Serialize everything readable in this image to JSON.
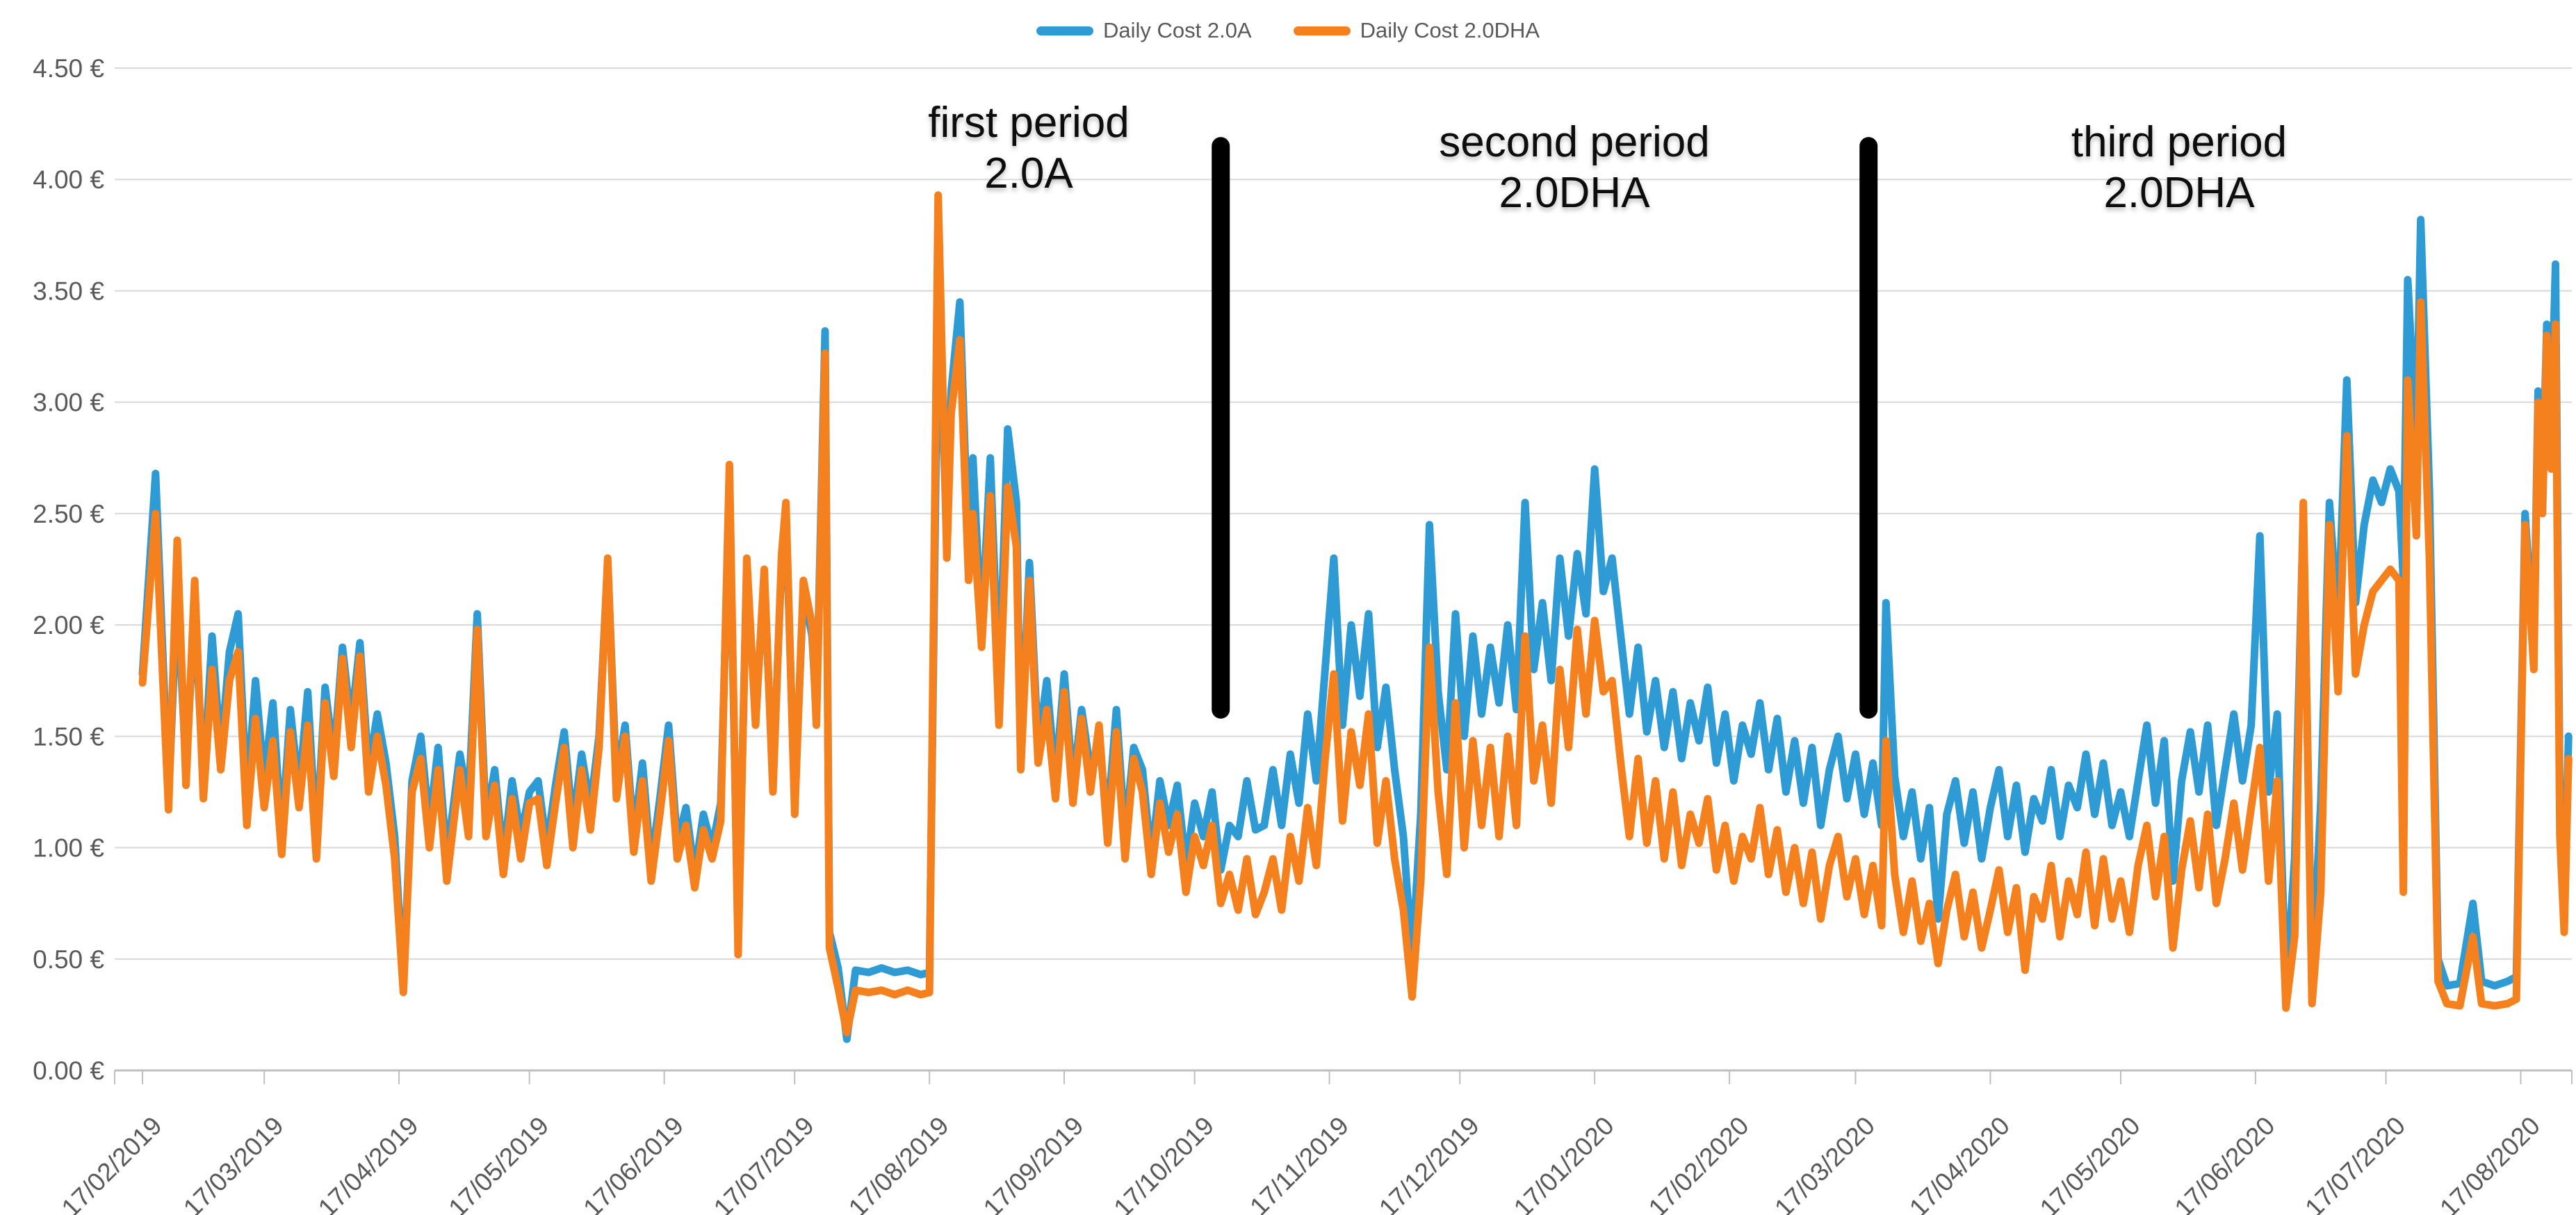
{
  "legend": {
    "items": [
      {
        "label": "Daily Cost 2.0A",
        "color": "#2E9BD5"
      },
      {
        "label": "Daily Cost 2.0DHA",
        "color": "#F5801E"
      }
    ]
  },
  "annotations": {
    "first": {
      "line1": "first period",
      "line2": "2.0A"
    },
    "second": {
      "line1": "second period",
      "line2": "2.0DHA"
    },
    "third": {
      "line1": "third period",
      "line2": "2.0DHA"
    }
  },
  "chart_data": {
    "type": "line",
    "title": "",
    "xlabel": "",
    "ylabel": "",
    "x_unit": "daily values, days since 17/02/2019",
    "ylim": [
      0,
      4.5
    ],
    "grid": "horizontal",
    "legend_position": "top-center",
    "y_ticks": [
      0,
      0.5,
      1.0,
      1.5,
      2.0,
      2.5,
      3.0,
      3.5,
      4.0,
      4.5
    ],
    "y_tick_labels": [
      "0.00 €",
      "0.50 €",
      "1.00 €",
      "1.50 €",
      "2.00 €",
      "2.50 €",
      "3.00 €",
      "3.50 €",
      "4.00 €",
      "4.50 €"
    ],
    "x_tick_days": [
      0,
      28,
      59,
      89,
      120,
      150,
      181,
      212,
      242,
      273,
      303,
      334,
      365,
      394,
      425,
      455,
      486,
      516,
      547
    ],
    "x_tick_labels": [
      "17/02/2019",
      "17/03/2019",
      "17/04/2019",
      "17/05/2019",
      "17/06/2019",
      "17/07/2019",
      "17/08/2019",
      "17/09/2019",
      "17/10/2019",
      "17/11/2019",
      "17/12/2019",
      "17/01/2020",
      "17/02/2020",
      "17/03/2020",
      "17/04/2020",
      "17/05/2020",
      "17/06/2020",
      "17/07/2020",
      "17/08/2020"
    ],
    "series": [
      {
        "name": "Daily Cost 2.0A",
        "color": "#2E9BD5",
        "point_index": 1
      },
      {
        "name": "Daily Cost 2.0DHA",
        "color": "#F5801E",
        "point_index": 2
      }
    ],
    "points": [
      [
        0,
        1.78,
        1.74
      ],
      [
        3,
        2.68,
        2.5
      ],
      [
        6,
        1.22,
        1.17
      ],
      [
        8,
        2.15,
        2.38
      ],
      [
        10,
        1.35,
        1.28
      ],
      [
        12,
        2.08,
        2.2
      ],
      [
        14,
        1.28,
        1.22
      ],
      [
        16,
        1.95,
        1.8
      ],
      [
        18,
        1.42,
        1.35
      ],
      [
        20,
        1.88,
        1.75
      ],
      [
        22,
        2.05,
        1.88
      ],
      [
        24,
        1.22,
        1.1
      ],
      [
        26,
        1.75,
        1.58
      ],
      [
        28,
        1.3,
        1.18
      ],
      [
        30,
        1.65,
        1.48
      ],
      [
        32,
        1.05,
        0.97
      ],
      [
        34,
        1.62,
        1.52
      ],
      [
        36,
        1.25,
        1.18
      ],
      [
        38,
        1.7,
        1.55
      ],
      [
        40,
        1.02,
        0.95
      ],
      [
        42,
        1.72,
        1.65
      ],
      [
        44,
        1.4,
        1.32
      ],
      [
        46,
        1.9,
        1.85
      ],
      [
        48,
        1.55,
        1.45
      ],
      [
        50,
        1.92,
        1.86
      ],
      [
        52,
        1.35,
        1.25
      ],
      [
        54,
        1.6,
        1.5
      ],
      [
        56,
        1.38,
        1.28
      ],
      [
        58,
        1.05,
        0.95
      ],
      [
        60,
        0.38,
        0.35
      ],
      [
        62,
        1.3,
        1.25
      ],
      [
        64,
        1.5,
        1.4
      ],
      [
        66,
        1.1,
        1.0
      ],
      [
        68,
        1.45,
        1.35
      ],
      [
        70,
        0.95,
        0.85
      ],
      [
        73,
        1.42,
        1.35
      ],
      [
        75,
        1.2,
        1.05
      ],
      [
        77,
        2.05,
        1.98
      ],
      [
        79,
        1.12,
        1.05
      ],
      [
        81,
        1.35,
        1.28
      ],
      [
        83,
        0.95,
        0.88
      ],
      [
        85,
        1.3,
        1.22
      ],
      [
        87,
        1.05,
        0.95
      ],
      [
        89,
        1.25,
        1.2
      ],
      [
        91,
        1.3,
        1.22
      ],
      [
        93,
        1.0,
        0.92
      ],
      [
        95,
        1.28,
        1.2
      ],
      [
        97,
        1.52,
        1.45
      ],
      [
        99,
        1.1,
        1.0
      ],
      [
        101,
        1.42,
        1.35
      ],
      [
        103,
        1.18,
        1.08
      ],
      [
        105,
        1.5,
        1.45
      ],
      [
        107,
        2.28,
        2.3
      ],
      [
        109,
        1.3,
        1.22
      ],
      [
        111,
        1.55,
        1.5
      ],
      [
        113,
        1.05,
        0.98
      ],
      [
        115,
        1.38,
        1.3
      ],
      [
        117,
        0.92,
        0.85
      ],
      [
        119,
        1.22,
        1.15
      ],
      [
        121,
        1.55,
        1.48
      ],
      [
        123,
        1.02,
        0.95
      ],
      [
        125,
        1.18,
        1.1
      ],
      [
        127,
        0.88,
        0.82
      ],
      [
        129,
        1.15,
        1.08
      ],
      [
        131,
        1.0,
        0.95
      ],
      [
        133,
        1.2,
        1.12
      ],
      [
        135,
        2.6,
        2.72
      ],
      [
        137,
        0.6,
        0.52
      ],
      [
        139,
        2.25,
        2.3
      ],
      [
        141,
        1.6,
        1.55
      ],
      [
        143,
        2.2,
        2.25
      ],
      [
        145,
        1.3,
        1.25
      ],
      [
        147,
        2.28,
        2.32
      ],
      [
        148,
        2.5,
        2.55
      ],
      [
        150,
        1.2,
        1.15
      ],
      [
        152,
        2.15,
        2.2
      ],
      [
        154,
        1.95,
        2.0
      ],
      [
        155,
        1.6,
        1.55
      ],
      [
        157,
        3.32,
        3.22
      ],
      [
        158,
        0.62,
        0.55
      ],
      [
        160,
        0.46,
        0.37
      ],
      [
        162,
        0.14,
        0.17
      ],
      [
        164,
        0.45,
        0.36
      ],
      [
        167,
        0.44,
        0.35
      ],
      [
        170,
        0.46,
        0.36
      ],
      [
        173,
        0.44,
        0.34
      ],
      [
        176,
        0.45,
        0.36
      ],
      [
        179,
        0.43,
        0.34
      ],
      [
        181,
        0.44,
        0.35
      ],
      [
        183,
        3.5,
        3.93
      ],
      [
        185,
        2.4,
        2.3
      ],
      [
        186,
        3.05,
        2.95
      ],
      [
        188,
        3.45,
        3.28
      ],
      [
        190,
        2.3,
        2.2
      ],
      [
        191,
        2.75,
        2.5
      ],
      [
        193,
        1.95,
        1.9
      ],
      [
        195,
        2.75,
        2.58
      ],
      [
        197,
        1.7,
        1.55
      ],
      [
        199,
        2.88,
        2.62
      ],
      [
        201,
        2.55,
        2.35
      ],
      [
        202,
        1.38,
        1.35
      ],
      [
        204,
        2.28,
        2.2
      ],
      [
        206,
        1.45,
        1.38
      ],
      [
        208,
        1.75,
        1.62
      ],
      [
        210,
        1.3,
        1.22
      ],
      [
        212,
        1.78,
        1.7
      ],
      [
        214,
        1.28,
        1.2
      ],
      [
        216,
        1.62,
        1.58
      ],
      [
        218,
        1.35,
        1.25
      ],
      [
        220,
        1.48,
        1.55
      ],
      [
        222,
        1.12,
        1.02
      ],
      [
        224,
        1.62,
        1.52
      ],
      [
        226,
        1.05,
        0.95
      ],
      [
        228,
        1.45,
        1.4
      ],
      [
        230,
        1.35,
        1.25
      ],
      [
        232,
        0.95,
        0.88
      ],
      [
        234,
        1.3,
        1.2
      ],
      [
        236,
        1.1,
        0.98
      ],
      [
        238,
        1.28,
        1.15
      ],
      [
        240,
        0.92,
        0.8
      ],
      [
        242,
        1.2,
        1.05
      ],
      [
        244,
        1.05,
        0.92
      ],
      [
        246,
        1.25,
        1.1
      ],
      [
        248,
        0.9,
        0.75
      ],
      [
        250,
        1.1,
        0.88
      ],
      [
        252,
        1.05,
        0.72
      ],
      [
        254,
        1.3,
        0.95
      ],
      [
        256,
        1.08,
        0.7
      ],
      [
        258,
        1.1,
        0.8
      ],
      [
        260,
        1.35,
        0.95
      ],
      [
        262,
        1.1,
        0.72
      ],
      [
        264,
        1.42,
        1.05
      ],
      [
        266,
        1.2,
        0.85
      ],
      [
        268,
        1.6,
        1.18
      ],
      [
        270,
        1.3,
        0.92
      ],
      [
        272,
        1.8,
        1.4
      ],
      [
        274,
        2.3,
        1.78
      ],
      [
        276,
        1.55,
        1.12
      ],
      [
        278,
        2.0,
        1.52
      ],
      [
        280,
        1.68,
        1.28
      ],
      [
        282,
        2.05,
        1.6
      ],
      [
        284,
        1.45,
        1.02
      ],
      [
        286,
        1.72,
        1.3
      ],
      [
        288,
        1.35,
        0.95
      ],
      [
        290,
        1.05,
        0.72
      ],
      [
        292,
        0.5,
        0.33
      ],
      [
        294,
        1.15,
        0.85
      ],
      [
        296,
        2.45,
        1.9
      ],
      [
        298,
        1.7,
        1.25
      ],
      [
        300,
        1.35,
        0.88
      ],
      [
        302,
        2.05,
        1.65
      ],
      [
        304,
        1.5,
        1.0
      ],
      [
        306,
        1.95,
        1.48
      ],
      [
        308,
        1.6,
        1.1
      ],
      [
        310,
        1.9,
        1.45
      ],
      [
        312,
        1.65,
        1.05
      ],
      [
        314,
        2.0,
        1.5
      ],
      [
        316,
        1.62,
        1.1
      ],
      [
        318,
        2.55,
        1.95
      ],
      [
        320,
        1.8,
        1.3
      ],
      [
        322,
        2.1,
        1.55
      ],
      [
        324,
        1.75,
        1.2
      ],
      [
        326,
        2.3,
        1.8
      ],
      [
        328,
        1.95,
        1.45
      ],
      [
        330,
        2.32,
        1.98
      ],
      [
        332,
        2.05,
        1.6
      ],
      [
        334,
        2.7,
        2.02
      ],
      [
        336,
        2.15,
        1.7
      ],
      [
        338,
        2.3,
        1.75
      ],
      [
        340,
        1.95,
        1.38
      ],
      [
        342,
        1.6,
        1.05
      ],
      [
        344,
        1.9,
        1.4
      ],
      [
        346,
        1.52,
        1.02
      ],
      [
        348,
        1.75,
        1.3
      ],
      [
        350,
        1.45,
        0.95
      ],
      [
        352,
        1.7,
        1.25
      ],
      [
        354,
        1.4,
        0.92
      ],
      [
        356,
        1.65,
        1.15
      ],
      [
        358,
        1.48,
        1.02
      ],
      [
        360,
        1.72,
        1.22
      ],
      [
        362,
        1.38,
        0.9
      ],
      [
        364,
        1.6,
        1.1
      ],
      [
        366,
        1.3,
        0.85
      ],
      [
        368,
        1.55,
        1.05
      ],
      [
        370,
        1.42,
        0.95
      ],
      [
        372,
        1.65,
        1.18
      ],
      [
        374,
        1.35,
        0.88
      ],
      [
        376,
        1.58,
        1.08
      ],
      [
        378,
        1.25,
        0.8
      ],
      [
        380,
        1.48,
        1.0
      ],
      [
        382,
        1.2,
        0.75
      ],
      [
        384,
        1.45,
        0.98
      ],
      [
        386,
        1.1,
        0.68
      ],
      [
        388,
        1.35,
        0.92
      ],
      [
        390,
        1.5,
        1.05
      ],
      [
        392,
        1.22,
        0.78
      ],
      [
        394,
        1.42,
        0.95
      ],
      [
        396,
        1.15,
        0.7
      ],
      [
        398,
        1.38,
        0.92
      ],
      [
        400,
        1.1,
        0.65
      ],
      [
        401,
        2.1,
        1.48
      ],
      [
        403,
        1.32,
        0.88
      ],
      [
        405,
        1.05,
        0.62
      ],
      [
        407,
        1.25,
        0.85
      ],
      [
        409,
        0.95,
        0.58
      ],
      [
        411,
        1.18,
        0.75
      ],
      [
        413,
        0.68,
        0.48
      ],
      [
        415,
        1.15,
        0.72
      ],
      [
        417,
        1.3,
        0.88
      ],
      [
        419,
        1.02,
        0.6
      ],
      [
        421,
        1.25,
        0.8
      ],
      [
        423,
        0.95,
        0.55
      ],
      [
        425,
        1.18,
        0.72
      ],
      [
        427,
        1.35,
        0.9
      ],
      [
        429,
        1.05,
        0.62
      ],
      [
        431,
        1.28,
        0.82
      ],
      [
        433,
        0.98,
        0.45
      ],
      [
        435,
        1.22,
        0.78
      ],
      [
        437,
        1.12,
        0.68
      ],
      [
        439,
        1.35,
        0.92
      ],
      [
        441,
        1.05,
        0.6
      ],
      [
        443,
        1.28,
        0.85
      ],
      [
        445,
        1.18,
        0.7
      ],
      [
        447,
        1.42,
        0.98
      ],
      [
        449,
        1.15,
        0.65
      ],
      [
        451,
        1.38,
        0.95
      ],
      [
        453,
        1.1,
        0.68
      ],
      [
        455,
        1.25,
        0.85
      ],
      [
        457,
        1.05,
        0.62
      ],
      [
        459,
        1.3,
        0.92
      ],
      [
        461,
        1.55,
        1.1
      ],
      [
        463,
        1.2,
        0.78
      ],
      [
        465,
        1.48,
        1.05
      ],
      [
        467,
        0.85,
        0.55
      ],
      [
        469,
        1.3,
        0.9
      ],
      [
        471,
        1.52,
        1.12
      ],
      [
        473,
        1.25,
        0.82
      ],
      [
        475,
        1.55,
        1.15
      ],
      [
        477,
        1.1,
        0.75
      ],
      [
        479,
        1.35,
        0.95
      ],
      [
        481,
        1.6,
        1.2
      ],
      [
        483,
        1.3,
        0.9
      ],
      [
        485,
        1.55,
        1.18
      ],
      [
        487,
        2.4,
        1.45
      ],
      [
        489,
        1.25,
        0.85
      ],
      [
        491,
        1.6,
        1.3
      ],
      [
        493,
        0.35,
        0.28
      ],
      [
        495,
        0.95,
        0.6
      ],
      [
        497,
        2.5,
        2.55
      ],
      [
        499,
        0.4,
        0.3
      ],
      [
        501,
        1.2,
        0.8
      ],
      [
        503,
        2.55,
        2.45
      ],
      [
        505,
        2.0,
        1.7
      ],
      [
        507,
        3.1,
        2.85
      ],
      [
        509,
        2.1,
        1.78
      ],
      [
        511,
        2.45,
        2.0
      ],
      [
        513,
        2.65,
        2.15
      ],
      [
        515,
        2.55,
        2.2
      ],
      [
        517,
        2.7,
        2.25
      ],
      [
        519,
        2.6,
        2.2
      ],
      [
        520,
        2.2,
        0.8
      ],
      [
        521,
        3.55,
        3.1
      ],
      [
        523,
        2.8,
        2.4
      ],
      [
        524,
        3.82,
        3.45
      ],
      [
        526,
        2.6,
        2.3
      ],
      [
        528,
        0.5,
        0.4
      ],
      [
        530,
        0.38,
        0.3
      ],
      [
        533,
        0.39,
        0.29
      ],
      [
        536,
        0.75,
        0.6
      ],
      [
        538,
        0.4,
        0.3
      ],
      [
        541,
        0.38,
        0.29
      ],
      [
        544,
        0.4,
        0.3
      ],
      [
        546,
        0.42,
        0.32
      ],
      [
        548,
        2.5,
        2.45
      ],
      [
        550,
        1.9,
        1.8
      ],
      [
        551,
        3.05,
        3.0
      ],
      [
        552,
        2.6,
        2.5
      ],
      [
        553,
        3.35,
        3.3
      ],
      [
        554,
        2.9,
        2.7
      ],
      [
        555,
        3.62,
        3.35
      ],
      [
        556,
        1.2,
        1.05
      ],
      [
        557,
        0.75,
        0.62
      ],
      [
        558,
        1.5,
        1.4
      ]
    ],
    "dividers": [
      {
        "name": "first-second-period-divider",
        "day": 248,
        "value_from": 1.62,
        "value_to": 4.15,
        "color": "#000000"
      },
      {
        "name": "second-third-period-divider",
        "day": 397,
        "value_from": 1.62,
        "value_to": 4.15,
        "color": "#000000"
      }
    ],
    "period_labels": [
      {
        "text": "first period 2.0A",
        "center_day": 204
      },
      {
        "text": "second period 2.0DHA",
        "center_day": 329
      },
      {
        "text": "third period 2.0DHA",
        "center_day": 468
      }
    ],
    "styles": {
      "gridline_color": "#d9d9d9",
      "axis_color": "#bfbfbf",
      "tick_label_color": "#595959",
      "line_width": 11,
      "divider_width": 26
    }
  }
}
